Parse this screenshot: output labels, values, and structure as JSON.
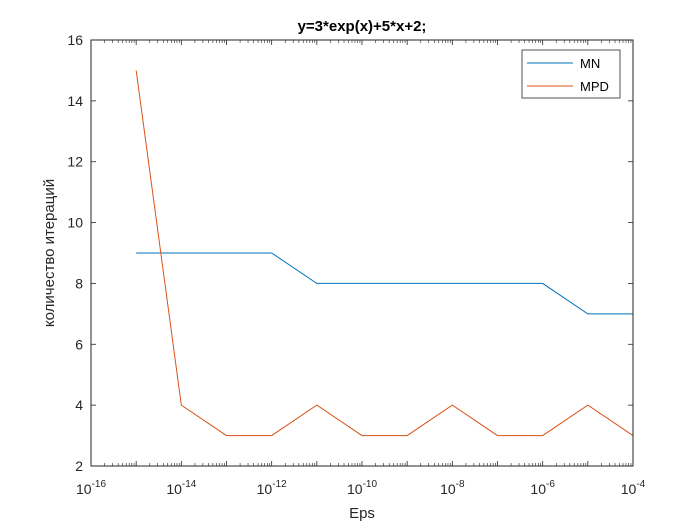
{
  "chart_data": {
    "type": "line",
    "title": "y=3*exp(x)+5*x+2;",
    "xlabel": "Eps",
    "ylabel": "количество итераций",
    "xscale": "log",
    "xlim": [
      1e-16,
      0.0001
    ],
    "ylim": [
      2,
      16
    ],
    "grid": false,
    "legend_position": "top-right",
    "x": [
      1e-15,
      1e-14,
      1e-13,
      1e-12,
      1e-11,
      1e-10,
      1e-09,
      1e-08,
      1e-07,
      1e-06,
      1e-05,
      0.0001
    ],
    "x_tick_values": [
      1e-16,
      1e-14,
      1e-12,
      1e-10,
      1e-08,
      1e-06,
      0.0001
    ],
    "x_tick_labels": [
      {
        "base": "10",
        "exp": "-16"
      },
      {
        "base": "10",
        "exp": "-14"
      },
      {
        "base": "10",
        "exp": "-12"
      },
      {
        "base": "10",
        "exp": "-10"
      },
      {
        "base": "10",
        "exp": "-8"
      },
      {
        "base": "10",
        "exp": "-6"
      },
      {
        "base": "10",
        "exp": "-4"
      }
    ],
    "y_ticks": [
      2,
      4,
      6,
      8,
      10,
      12,
      14,
      16
    ],
    "y_tick_labels": [
      "2",
      "4",
      "6",
      "8",
      "10",
      "12",
      "14",
      "16"
    ],
    "series": [
      {
        "name": "MN",
        "color": "#0072bd",
        "values": [
          9,
          9,
          9,
          9,
          8,
          8,
          8,
          8,
          8,
          8,
          7,
          7
        ]
      },
      {
        "name": "MPD",
        "color": "#d95319",
        "values": [
          15,
          4,
          3,
          3,
          4,
          3,
          3,
          4,
          3,
          3,
          4,
          3
        ]
      }
    ]
  }
}
